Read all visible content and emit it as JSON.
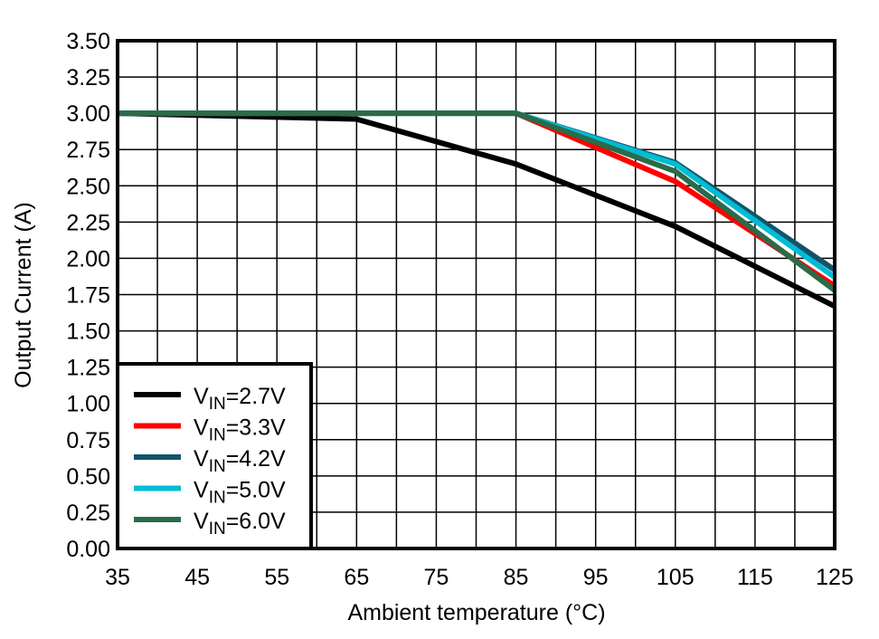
{
  "chart_data": {
    "type": "line",
    "xlabel": "Ambient temperature (°C)",
    "ylabel": "Output Current (A)",
    "xlim": [
      35,
      125
    ],
    "ylim": [
      0,
      3.5
    ],
    "xticks": [
      35,
      45,
      55,
      65,
      75,
      85,
      95,
      105,
      115,
      125
    ],
    "yticks": [
      "0.00",
      "0.25",
      "0.50",
      "0.75",
      "1.00",
      "1.25",
      "1.50",
      "1.75",
      "2.00",
      "2.25",
      "2.50",
      "2.75",
      "3.00",
      "3.25",
      "3.50"
    ],
    "grid": true,
    "grid_x_step": 5,
    "grid_y_step": 0.25,
    "legend_position": "bottom-left",
    "x": [
      35,
      65,
      85,
      105,
      125
    ],
    "series": [
      {
        "name": "VIN=2.7V",
        "label_main": "V",
        "label_sub": "IN",
        "label_rest": "=2.7V",
        "color": "#000000",
        "values": [
          3.0,
          2.96,
          2.65,
          2.22,
          1.67
        ]
      },
      {
        "name": "VIN=3.3V",
        "label_main": "V",
        "label_sub": "IN",
        "label_rest": "=3.3V",
        "color": "#ff0000",
        "values": [
          3.0,
          3.0,
          3.0,
          2.53,
          1.81
        ]
      },
      {
        "name": "VIN=4.2V",
        "label_main": "V",
        "label_sub": "IN",
        "label_rest": "=4.2V",
        "color": "#14536a",
        "values": [
          3.0,
          3.0,
          3.0,
          2.66,
          1.92
        ]
      },
      {
        "name": "VIN=5.0V",
        "label_main": "V",
        "label_sub": "IN",
        "label_rest": "=5.0V",
        "color": "#00bcd4",
        "values": [
          3.0,
          3.0,
          3.0,
          2.65,
          1.87
        ]
      },
      {
        "name": "VIN=6.0V",
        "label_main": "V",
        "label_sub": "IN",
        "label_rest": "=6.0V",
        "color": "#2a6b4a",
        "values": [
          3.0,
          3.0,
          3.0,
          2.6,
          1.78
        ]
      }
    ]
  }
}
